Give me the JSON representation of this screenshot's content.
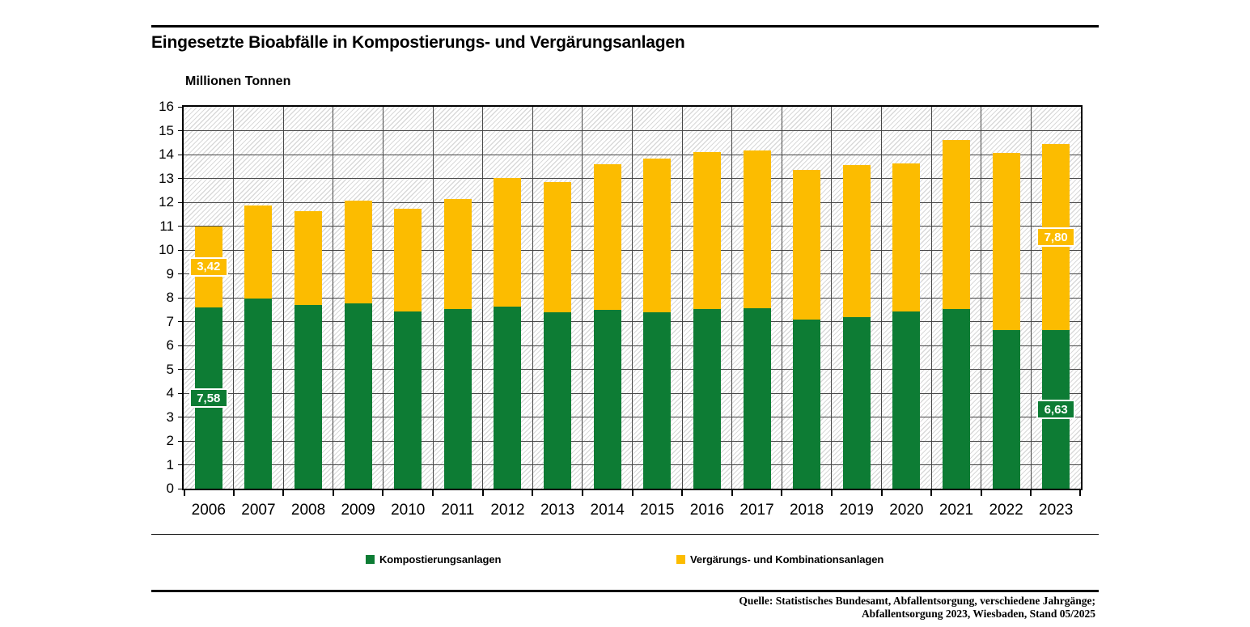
{
  "title": "Eingesetzte Bioabfälle in Kompostierungs- und Vergärungsanlagen",
  "unit_label": "Millionen Tonnen",
  "legend": [
    {
      "label": "Kompostierungsanlagen",
      "color": "#0d7c34"
    },
    {
      "label": "Vergärungs- und Kombinationsanlagen",
      "color": "#fcbc00"
    }
  ],
  "source": {
    "line1": "Quelle: Statistisches Bundesamt, Abfallentsorgung, verschiedene Jahrgänge;",
    "line2": "Abfallentsorgung 2023, Wiesbaden, Stand 05/2025"
  },
  "chart_data": {
    "type": "bar",
    "stacked": true,
    "title": "Eingesetzte Bioabfälle in Kompostierungs- und Vergärungsanlagen",
    "ylabel": "Millionen Tonnen",
    "ylim": [
      0,
      16
    ],
    "ytick_step": 1,
    "grid": true,
    "legend_position": "bottom",
    "categories": [
      2006,
      2007,
      2008,
      2009,
      2010,
      2011,
      2012,
      2013,
      2014,
      2015,
      2016,
      2017,
      2018,
      2019,
      2020,
      2021,
      2022,
      2023
    ],
    "series": [
      {
        "name": "Kompostierungsanlagen",
        "color": "#0d7c34",
        "values": [
          7.58,
          7.95,
          7.7,
          7.76,
          7.44,
          7.53,
          7.64,
          7.38,
          7.48,
          7.4,
          7.52,
          7.57,
          7.1,
          7.18,
          7.43,
          7.54,
          6.66,
          6.63
        ]
      },
      {
        "name": "Vergärungs- und Kombinationsanlagen",
        "color": "#fcbc00",
        "values": [
          3.42,
          3.9,
          3.92,
          4.31,
          4.28,
          4.6,
          5.37,
          5.47,
          6.11,
          6.43,
          6.57,
          6.61,
          6.25,
          6.39,
          6.21,
          7.08,
          7.42,
          7.8
        ]
      }
    ],
    "data_labels": [
      {
        "year": 2006,
        "series": 0,
        "text": "7,58"
      },
      {
        "year": 2006,
        "series": 1,
        "text": "3,42"
      },
      {
        "year": 2023,
        "series": 0,
        "text": "6,63"
      },
      {
        "year": 2023,
        "series": 1,
        "text": "7,80"
      }
    ]
  }
}
